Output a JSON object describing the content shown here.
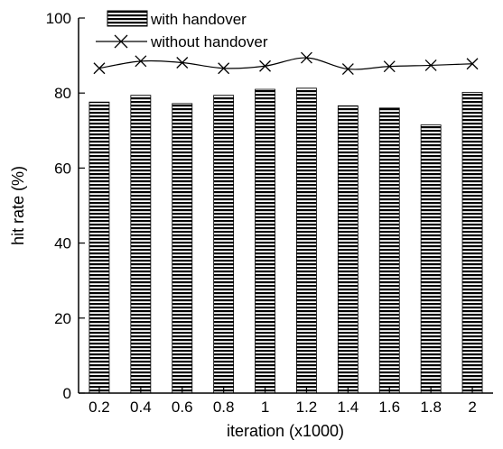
{
  "chart_data": {
    "type": "bar",
    "categories": [
      "0.2",
      "0.4",
      "0.6",
      "0.8",
      "1",
      "1.2",
      "1.4",
      "1.6",
      "1.8",
      "2"
    ],
    "series": [
      {
        "name": "with handover",
        "type": "bar",
        "values": [
          77.6,
          79.4,
          77.2,
          79.4,
          81.0,
          81.3,
          76.6,
          76.0,
          71.5,
          80.2
        ]
      },
      {
        "name": "without handover",
        "type": "line",
        "values": [
          86.6,
          88.5,
          88.1,
          86.6,
          87.2,
          89.4,
          86.4,
          87.1,
          87.4,
          87.8
        ]
      }
    ],
    "xlabel": "iteration (x1000)",
    "ylabel": "hit rate (%)",
    "ylim": [
      0,
      100
    ],
    "yticks": [
      "0",
      "20",
      "40",
      "60",
      "80",
      "100"
    ],
    "grid": false,
    "legend": "top-left"
  }
}
